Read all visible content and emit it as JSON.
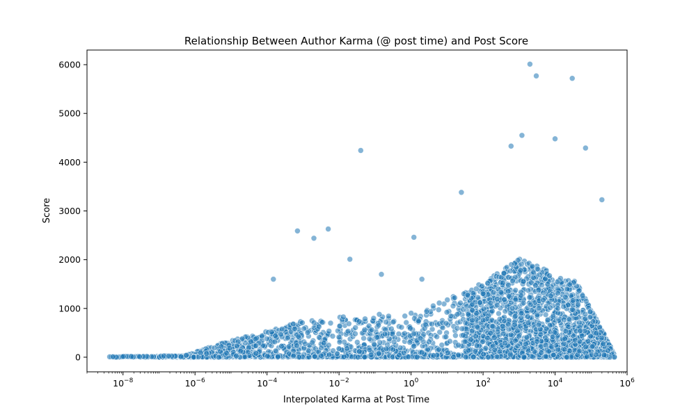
{
  "chart_data": {
    "type": "scatter",
    "title": "Relationship Between Author Karma (@ post time) and Post Score",
    "xlabel": "Interpolated Karma at Post Time",
    "ylabel": "Score",
    "x_scale": "log",
    "xlim": [
      1e-09,
      1000000.0
    ],
    "ylim": [
      -300,
      6300
    ],
    "x_ticks": [
      {
        "value": 1e-08,
        "base": "10",
        "exp": "−8"
      },
      {
        "value": 1e-06,
        "base": "10",
        "exp": "−6"
      },
      {
        "value": 0.0001,
        "base": "10",
        "exp": "−4"
      },
      {
        "value": 0.01,
        "base": "10",
        "exp": "−2"
      },
      {
        "value": 1,
        "base": "10",
        "exp": "0"
      },
      {
        "value": 100,
        "base": "10",
        "exp": "2"
      },
      {
        "value": 10000,
        "base": "10",
        "exp": "4"
      },
      {
        "value": 1000000,
        "base": "10",
        "exp": "6"
      }
    ],
    "y_ticks": [
      0,
      1000,
      2000,
      3000,
      4000,
      5000,
      6000
    ],
    "grid": false,
    "colors": {
      "point": "#1f77b4"
    },
    "outliers": [
      {
        "x": 2000,
        "y": 6010
      },
      {
        "x": 3000,
        "y": 5770
      },
      {
        "x": 30000,
        "y": 5720
      },
      {
        "x": 0.04,
        "y": 4240
      },
      {
        "x": 1200,
        "y": 4550
      },
      {
        "x": 10000,
        "y": 4480
      },
      {
        "x": 600,
        "y": 4330
      },
      {
        "x": 70000,
        "y": 4290
      },
      {
        "x": 25,
        "y": 3380
      },
      {
        "x": 200000,
        "y": 3230
      },
      {
        "x": 0.0007,
        "y": 2590
      },
      {
        "x": 0.005,
        "y": 2630
      },
      {
        "x": 0.002,
        "y": 2440
      },
      {
        "x": 1.2,
        "y": 2460
      },
      {
        "x": 0.02,
        "y": 2010
      },
      {
        "x": 0.00015,
        "y": 1600
      },
      {
        "x": 0.15,
        "y": 1700
      },
      {
        "x": 2,
        "y": 1600
      }
    ]
  }
}
